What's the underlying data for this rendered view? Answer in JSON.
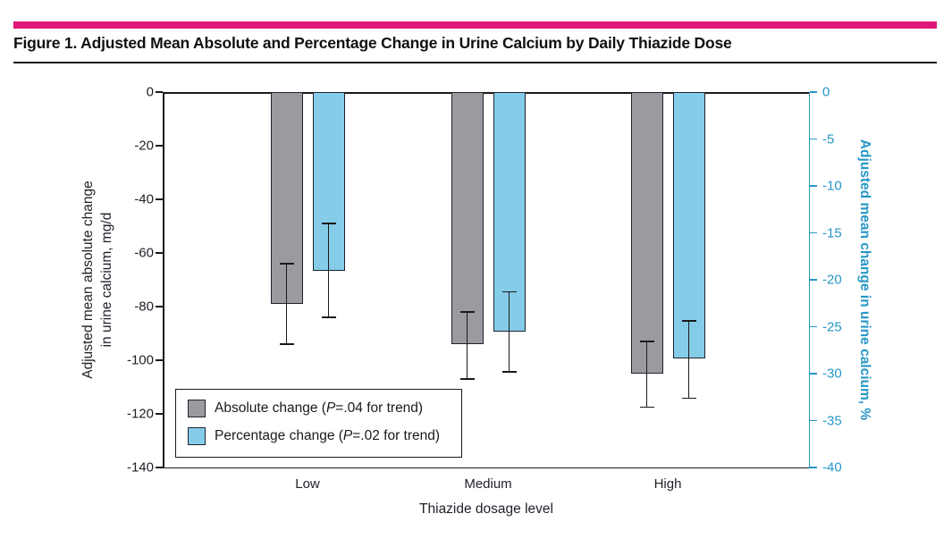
{
  "figure": {
    "title": "Figure 1. Adjusted Mean Absolute and Percentage Change in Urine Calcium by Daily Thiazide Dose",
    "accent_bar_color": "#de1878"
  },
  "chart_data": {
    "type": "bar",
    "title": "Figure 1. Adjusted Mean Absolute and Percentage Change in Urine Calcium by Daily Thiazide Dose",
    "categories": [
      "Low",
      "Medium",
      "High"
    ],
    "xlabel": "Thiazide dosage level",
    "grid": false,
    "legend_position": "inside-bottom-left",
    "left_axis": {
      "label": "Adjusted mean absolute change\nin urine calcium, mg/d",
      "ticks": [
        0,
        -20,
        -40,
        -60,
        -80,
        -100,
        -120,
        -140
      ],
      "range": [
        0,
        -140
      ],
      "color": "#1a1a1a"
    },
    "right_axis": {
      "label": "Adjusted mean change in urine calcium, %",
      "ticks": [
        0,
        -5,
        -10,
        -15,
        -20,
        -25,
        -30,
        -35,
        -40
      ],
      "range": [
        0,
        -40
      ],
      "color": "#2697c5"
    },
    "series": [
      {
        "name": "Absolute change",
        "legend": {
          "pre": "Absolute change (",
          "italic": "P",
          "post": "=.04 for trend)"
        },
        "axis": "left",
        "color": "#9b9b9f",
        "border_color": "#1f2430",
        "values": [
          -79,
          -94,
          -105
        ],
        "ci_upper": [
          -64,
          -82,
          -93
        ],
        "ci_lower": [
          -94,
          -107,
          -117.5
        ]
      },
      {
        "name": "Percentage change",
        "legend": {
          "pre": "Percentage change (",
          "italic": "P",
          "post": "=.02 for trend)"
        },
        "axis": "right",
        "color": "#85cce9",
        "border_color": "#1f2430",
        "values": [
          -19,
          -25.5,
          -28.4
        ],
        "ci_upper": [
          -14,
          -21.3,
          -24.4
        ],
        "ci_lower": [
          -24,
          -29.8,
          -32.6
        ]
      }
    ]
  }
}
